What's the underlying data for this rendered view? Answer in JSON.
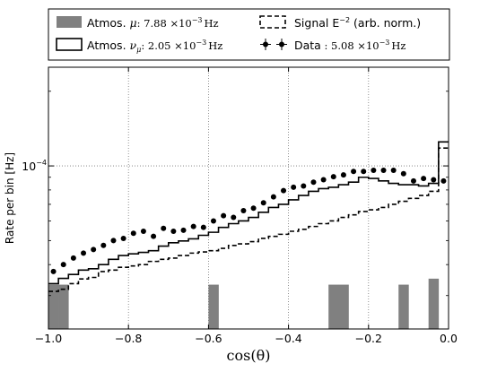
{
  "chart_data": {
    "type": "histogram",
    "xlabel": "cos(θ)",
    "ylabel": "Rate per bin [Hz]",
    "xlim": [
      -1.0,
      0.0
    ],
    "ylim": [
      2.2e-05,
      0.00025
    ],
    "y_scale": "log",
    "grid": "dotted, major ticks",
    "legend_position": "top (outside plot, 2 columns)",
    "x_ticks": [
      "−1.0",
      "−0.8",
      "−0.6",
      "−0.4",
      "−0.2",
      "0.0"
    ],
    "y_tick_label": {
      "base": "10",
      "exp": "−4",
      "value": 0.0001
    },
    "bin_edges": [
      -1.0,
      -0.975,
      -0.95,
      -0.925,
      -0.9,
      -0.875,
      -0.85,
      -0.825,
      -0.8,
      -0.775,
      -0.75,
      -0.725,
      -0.7,
      -0.675,
      -0.65,
      -0.625,
      -0.6,
      -0.575,
      -0.55,
      -0.525,
      -0.5,
      -0.475,
      -0.45,
      -0.425,
      -0.4,
      -0.375,
      -0.35,
      -0.325,
      -0.3,
      -0.275,
      -0.25,
      -0.225,
      -0.2,
      -0.175,
      -0.15,
      -0.125,
      -0.1,
      -0.075,
      -0.05,
      -0.025,
      0.0
    ],
    "series": [
      {
        "name_prefix": "Atmos. ",
        "symbol": "μ",
        "rate_text": ": 7.88 ×10",
        "rate_exp": "−3",
        "rate_unit": "Hz",
        "style": "filled-gray",
        "color": "#808080",
        "values": [
          3.32e-05,
          3.32e-05,
          0.0,
          0.0,
          0.0,
          0.0,
          0.0,
          0.0,
          0.0,
          0.0,
          0.0,
          0.0,
          0.0,
          0.0,
          0.0,
          0.0,
          3.32e-05,
          0.0,
          0.0,
          0.0,
          0.0,
          0.0,
          0.0,
          0.0,
          0.0,
          0.0,
          0.0,
          0.0,
          3.32e-05,
          3.32e-05,
          0.0,
          0.0,
          0.0,
          0.0,
          0.0,
          3.32e-05,
          0.0,
          0.0,
          3.51e-05,
          0.0
        ]
      },
      {
        "name_prefix": "Atmos. ",
        "symbol": "ν",
        "symbol_sub": "μ",
        "rate_text": ": 2.05 ×10",
        "rate_exp": "−3",
        "rate_unit": "Hz",
        "style": "step-solid",
        "color": "#000000",
        "values": [
          3.35e-05,
          3.52e-05,
          3.65e-05,
          3.8e-05,
          3.85e-05,
          4e-05,
          4.2e-05,
          4.35e-05,
          4.42e-05,
          4.48e-05,
          4.55e-05,
          4.75e-05,
          4.9e-05,
          4.98e-05,
          5.08e-05,
          5.25e-05,
          5.4e-05,
          5.65e-05,
          5.85e-05,
          6e-05,
          6.2e-05,
          6.5e-05,
          6.8e-05,
          7e-05,
          7.3e-05,
          7.6e-05,
          7.9e-05,
          8.1e-05,
          8.2e-05,
          8.4e-05,
          8.6e-05,
          9e-05,
          8.9e-05,
          8.7e-05,
          8.5e-05,
          8.4e-05,
          8.4e-05,
          8.3e-05,
          8.5e-05,
          0.000125
        ]
      },
      {
        "name_prefix": "Signal  E",
        "name_exp": "−2",
        "name_suffix": " (arb. norm.)",
        "style": "step-dashed",
        "color": "#000000",
        "values": [
          3.12e-05,
          3.18e-05,
          3.35e-05,
          3.5e-05,
          3.55e-05,
          3.75e-05,
          3.8e-05,
          3.9e-05,
          3.95e-05,
          4e-05,
          4.12e-05,
          4.2e-05,
          4.25e-05,
          4.35e-05,
          4.45e-05,
          4.5e-05,
          4.55e-05,
          4.65e-05,
          4.78e-05,
          4.85e-05,
          4.95e-05,
          5.1e-05,
          5.2e-05,
          5.3e-05,
          5.45e-05,
          5.55e-05,
          5.7e-05,
          5.85e-05,
          6e-05,
          6.2e-05,
          6.35e-05,
          6.55e-05,
          6.65e-05,
          6.8e-05,
          7e-05,
          7.2e-05,
          7.4e-05,
          7.6e-05,
          7.9e-05,
          0.000118
        ]
      },
      {
        "name_prefix": "Data",
        "rate_text": " : 5.08 ×10",
        "rate_exp": "−3",
        "rate_unit": "Hz",
        "style": "points-errorbars",
        "color": "#000000",
        "x": [
          -0.9875,
          -0.9625,
          -0.9375,
          -0.9125,
          -0.8875,
          -0.8625,
          -0.8375,
          -0.8125,
          -0.7875,
          -0.7625,
          -0.7375,
          -0.7125,
          -0.6875,
          -0.6625,
          -0.6375,
          -0.6125,
          -0.5875,
          -0.5625,
          -0.5375,
          -0.5125,
          -0.4875,
          -0.4625,
          -0.4375,
          -0.4125,
          -0.3875,
          -0.3625,
          -0.3375,
          -0.3125,
          -0.2875,
          -0.2625,
          -0.2375,
          -0.2125,
          -0.1875,
          -0.1625,
          -0.1375,
          -0.1125,
          -0.0875,
          -0.0625,
          -0.0375,
          -0.0125
        ],
        "y": [
          3.75e-05,
          4e-05,
          4.25e-05,
          4.45e-05,
          4.6e-05,
          4.78e-05,
          5e-05,
          5.1e-05,
          5.35e-05,
          5.45e-05,
          5.2e-05,
          5.6e-05,
          5.45e-05,
          5.5e-05,
          5.7e-05,
          5.65e-05,
          6e-05,
          6.3e-05,
          6.2e-05,
          6.6e-05,
          6.75e-05,
          7.1e-05,
          7.5e-05,
          7.95e-05,
          8.2e-05,
          8.3e-05,
          8.6e-05,
          8.8e-05,
          9.05e-05,
          9.2e-05,
          9.5e-05,
          9.5e-05,
          9.6e-05,
          9.6e-05,
          9.6e-05,
          9.3e-05,
          8.7e-05,
          8.9e-05,
          8.8e-05,
          8.7e-05
        ]
      }
    ]
  }
}
